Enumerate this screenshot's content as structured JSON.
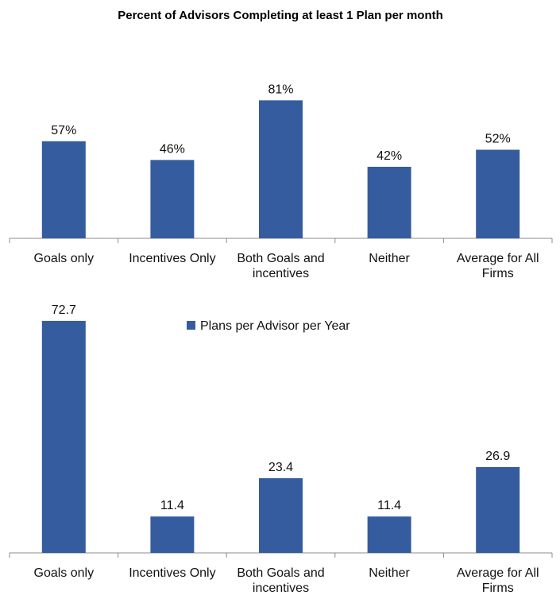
{
  "chart_data": [
    {
      "type": "bar",
      "title": "Percent of Advisors Completing at least 1 Plan per month",
      "categories": [
        "Goals only",
        "Incentives Only",
        "Both Goals and incentives",
        "Neither",
        "Average for All Firms"
      ],
      "values": [
        57,
        46,
        81,
        42,
        52
      ],
      "value_labels": [
        "57%",
        "46%",
        "81%",
        "42%",
        "52%"
      ],
      "ylim": [
        0,
        100
      ],
      "color": "#355C9E",
      "grid": false
    },
    {
      "type": "bar",
      "series": [
        {
          "name": "Plans per Advisor per Year",
          "values": [
            72.7,
            11.4,
            23.4,
            11.4,
            26.9
          ]
        }
      ],
      "categories": [
        "Goals only",
        "Incentives Only",
        "Both Goals and incentives",
        "Neither",
        "Average for All Firms"
      ],
      "value_labels": [
        "72.7",
        "11.4",
        "23.4",
        "11.4",
        "26.9"
      ],
      "ylim": [
        0,
        80
      ],
      "legend": "top",
      "color": "#355C9E",
      "grid": false
    }
  ]
}
